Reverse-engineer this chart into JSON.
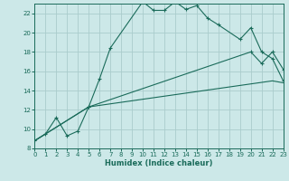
{
  "xlabel": "Humidex (Indice chaleur)",
  "bg_color": "#cce8e8",
  "grid_color": "#aacccc",
  "line_color": "#1a6b5a",
  "xlim": [
    0,
    23
  ],
  "ylim": [
    8,
    23
  ],
  "xticks": [
    0,
    1,
    2,
    3,
    4,
    5,
    6,
    7,
    8,
    9,
    10,
    11,
    12,
    13,
    14,
    15,
    16,
    17,
    18,
    19,
    20,
    21,
    22,
    23
  ],
  "yticks": [
    8,
    10,
    12,
    14,
    16,
    18,
    20,
    22
  ],
  "line1_x": [
    0,
    1,
    2,
    3,
    4,
    5,
    6,
    7,
    10,
    11,
    12,
    13,
    14,
    15,
    16,
    17,
    19,
    20,
    21,
    22,
    23
  ],
  "line1_y": [
    8.8,
    9.5,
    11.2,
    9.3,
    9.8,
    12.3,
    15.2,
    18.4,
    23.2,
    22.3,
    22.3,
    23.2,
    22.4,
    22.8,
    21.5,
    20.8,
    19.3,
    20.5,
    18.0,
    17.3,
    15.0
  ],
  "line2_x": [
    0,
    5,
    20,
    21,
    22,
    23
  ],
  "line2_y": [
    8.8,
    12.3,
    18.0,
    16.8,
    18.0,
    16.2
  ],
  "line3_x": [
    0,
    5,
    22,
    23
  ],
  "line3_y": [
    8.8,
    12.3,
    15.0,
    14.8
  ]
}
